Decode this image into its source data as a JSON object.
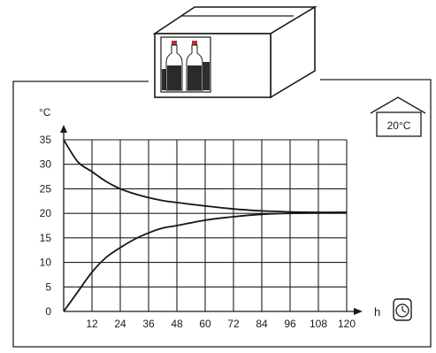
{
  "scene": {
    "room_temp_label": "20°C",
    "icons": [
      "cardboard-box-icon",
      "bottles-icon",
      "house-icon",
      "clock-icon"
    ]
  },
  "chart_data": {
    "type": "line",
    "ylabel": "°C",
    "xlabel": "h",
    "x_ticks": [
      12,
      24,
      36,
      48,
      60,
      72,
      84,
      96,
      108,
      120
    ],
    "y_ticks": [
      0,
      5,
      10,
      15,
      20,
      25,
      30,
      35
    ],
    "xlim": [
      0,
      120
    ],
    "ylim": [
      0,
      35
    ],
    "grid": true,
    "series": [
      {
        "x": [
          0,
          6,
          12,
          18,
          24,
          30,
          36,
          42,
          48,
          60,
          72,
          84,
          96,
          108,
          120
        ],
        "values": [
          35,
          30.5,
          28.5,
          26.5,
          25,
          24,
          23.2,
          22.6,
          22.2,
          21.5,
          20.9,
          20.5,
          20.3,
          20.2,
          20.2
        ]
      },
      {
        "x": [
          0,
          6,
          12,
          18,
          24,
          30,
          36,
          42,
          48,
          60,
          72,
          84,
          96,
          108,
          120
        ],
        "values": [
          0,
          4,
          8,
          11,
          13,
          14.7,
          16,
          17,
          17.5,
          18.6,
          19.3,
          19.8,
          20.0,
          20.1,
          20.2
        ]
      }
    ]
  }
}
